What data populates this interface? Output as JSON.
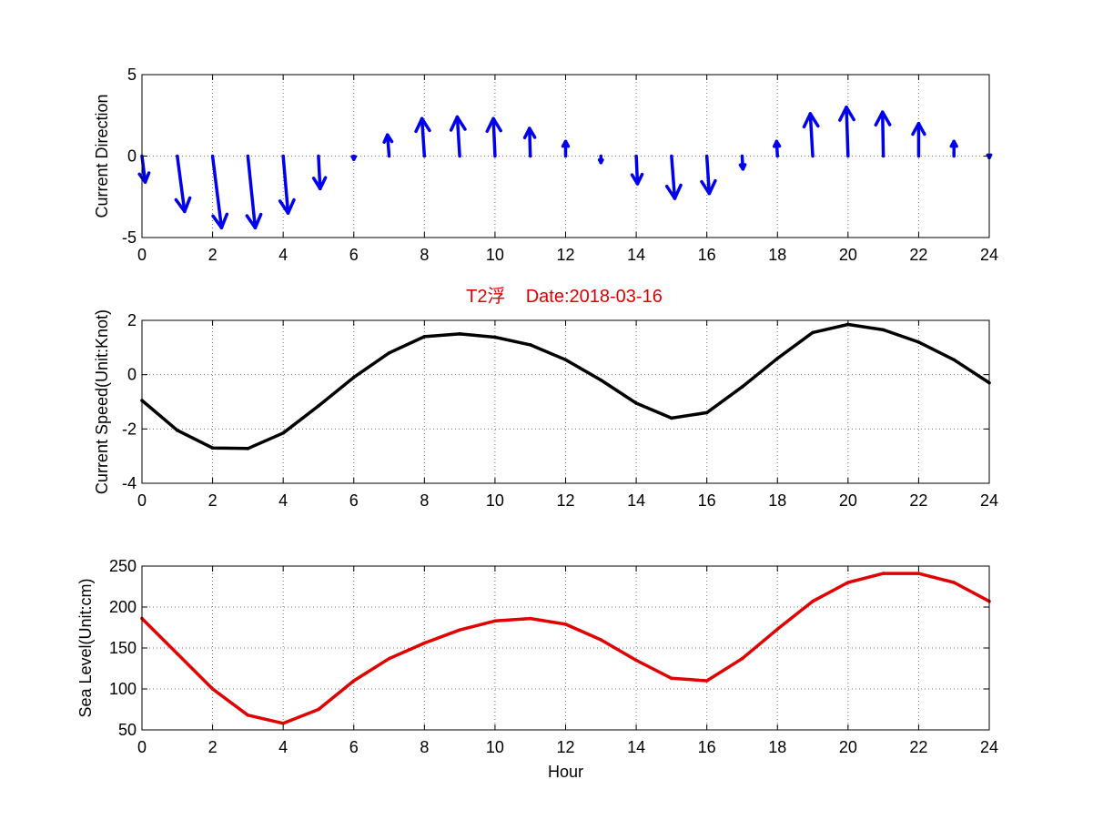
{
  "figure_title": "T2浮    Date:2018-03-16",
  "title_color": "#e00000",
  "chart_data": [
    {
      "type": "quiver",
      "ylabel": "Current Direction",
      "xlim": [
        0,
        24
      ],
      "ylim": [
        -5,
        5
      ],
      "xticks": [
        0,
        2,
        4,
        6,
        8,
        10,
        12,
        14,
        16,
        18,
        20,
        22,
        24
      ],
      "yticks": [
        5,
        0,
        -5
      ],
      "color": "#0000ee",
      "x": [
        0,
        1,
        2,
        3,
        4,
        5,
        6,
        7,
        8,
        9,
        10,
        11,
        12,
        13,
        14,
        15,
        16,
        17,
        18,
        19,
        20,
        21,
        22,
        23,
        24
      ],
      "u": [
        0.2,
        0.45,
        0.55,
        0.45,
        0.3,
        0.1,
        0.0,
        -0.1,
        -0.15,
        -0.15,
        -0.1,
        -0.05,
        0.0,
        0.0,
        0.08,
        0.2,
        0.15,
        0.05,
        -0.05,
        -0.15,
        -0.1,
        -0.05,
        0.0,
        0.0,
        0.0
      ],
      "v": [
        -1.6,
        -3.4,
        -4.4,
        -4.4,
        -3.5,
        -2.0,
        -0.2,
        1.3,
        2.3,
        2.4,
        2.3,
        1.7,
        0.9,
        -0.4,
        -1.7,
        -2.6,
        -2.3,
        -0.8,
        0.9,
        2.6,
        3.0,
        2.7,
        2.0,
        0.9,
        -0.1
      ]
    },
    {
      "type": "line",
      "ylabel": "Current Speed(Unit:Knot)",
      "xlim": [
        0,
        24
      ],
      "ylim": [
        -4,
        2
      ],
      "xticks": [
        0,
        2,
        4,
        6,
        8,
        10,
        12,
        14,
        16,
        18,
        20,
        22,
        24
      ],
      "yticks": [
        2,
        0,
        -2,
        -4
      ],
      "color": "#000000",
      "x": [
        0,
        1,
        2,
        3,
        4,
        5,
        6,
        7,
        8,
        9,
        10,
        11,
        12,
        13,
        14,
        15,
        16,
        17,
        18,
        19,
        20,
        21,
        22,
        23,
        24
      ],
      "y": [
        -0.95,
        -2.05,
        -2.7,
        -2.72,
        -2.15,
        -1.15,
        -0.1,
        0.8,
        1.4,
        1.5,
        1.38,
        1.1,
        0.55,
        -0.2,
        -1.05,
        -1.6,
        -1.4,
        -0.45,
        0.6,
        1.55,
        1.85,
        1.65,
        1.2,
        0.55,
        -0.3
      ]
    },
    {
      "type": "line",
      "ylabel": "Sea Level(Unit:cm)",
      "xlabel": "Hour",
      "xlim": [
        0,
        24
      ],
      "ylim": [
        50,
        250
      ],
      "xticks": [
        0,
        2,
        4,
        6,
        8,
        10,
        12,
        14,
        16,
        18,
        20,
        22,
        24
      ],
      "yticks": [
        250,
        200,
        150,
        100,
        50
      ],
      "color": "#e00000",
      "x": [
        0,
        1,
        2,
        3,
        4,
        5,
        6,
        7,
        8,
        9,
        10,
        11,
        12,
        13,
        14,
        15,
        16,
        17,
        18,
        19,
        20,
        21,
        22,
        23,
        24
      ],
      "y": [
        186,
        143,
        100,
        68,
        58,
        75,
        110,
        137,
        156,
        172,
        183,
        186,
        179,
        160,
        135,
        113,
        110,
        137,
        173,
        207,
        230,
        241,
        241,
        230,
        207
      ]
    }
  ]
}
